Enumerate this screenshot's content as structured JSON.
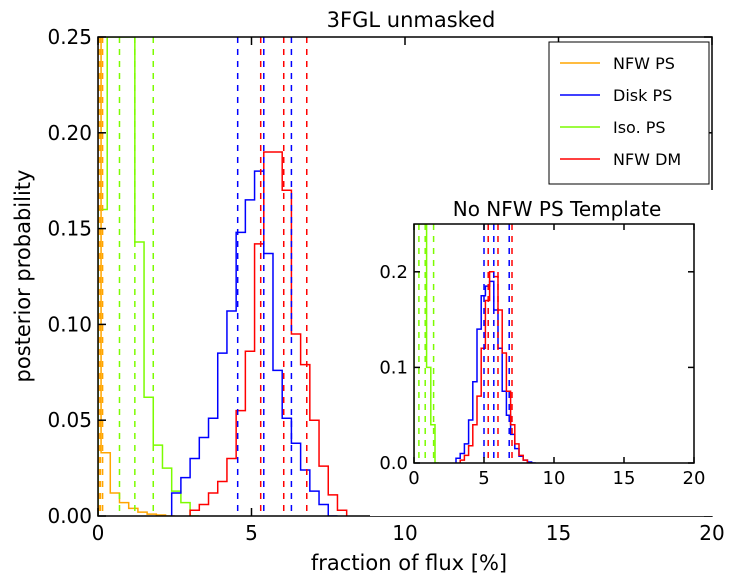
{
  "chart_data": {
    "type": "histogram",
    "title": "3FGL unmasked",
    "xlabel": "fraction of flux [%]",
    "ylabel": "posterior probability",
    "xlim": [
      0,
      20
    ],
    "ylim": [
      0,
      0.25
    ],
    "xticks": [
      "0",
      "5",
      "10",
      "15",
      "20"
    ],
    "yticks": [
      "0.00",
      "0.05",
      "0.10",
      "0.15",
      "0.20",
      "0.25"
    ],
    "legend": {
      "position": "top-right",
      "entries": [
        {
          "label": "NFW PS",
          "color": "#FFA500"
        },
        {
          "label": "Disk PS",
          "color": "#0000FF"
        },
        {
          "label": "Iso. PS",
          "color": "#7CFC00"
        },
        {
          "label": "NFW DM",
          "color": "#FF0000"
        }
      ]
    },
    "series": [
      {
        "name": "NFW PS",
        "color": "#FFA500",
        "edges": [
          0,
          0.1,
          0.4,
          0.7,
          1.0,
          1.3,
          1.6,
          1.9,
          2.2,
          2.5
        ],
        "values": [
          0.25,
          0.033,
          0.012,
          0.007,
          0.004,
          0.002,
          0.001,
          0.0005,
          0.0
        ]
      },
      {
        "name": "Iso. PS",
        "color": "#7CFC00",
        "edges": [
          0,
          0.3,
          0.6,
          0.9,
          1.2,
          1.5,
          1.8,
          2.1,
          2.4,
          2.7,
          3.0,
          3.3
        ],
        "values": [
          0.16,
          0.25,
          0.25,
          0.25,
          0.143,
          0.062,
          0.037,
          0.025,
          0.013,
          0.007,
          0.0
        ]
      },
      {
        "name": "Disk PS",
        "color": "#0000FF",
        "edges": [
          2.4,
          2.7,
          3.0,
          3.3,
          3.6,
          3.9,
          4.2,
          4.5,
          4.8,
          5.1,
          5.4,
          5.7,
          6.0,
          6.3,
          6.6,
          6.9,
          7.2,
          7.5,
          7.8
        ],
        "values": [
          0.012,
          0.02,
          0.03,
          0.041,
          0.051,
          0.085,
          0.107,
          0.148,
          0.165,
          0.18,
          0.137,
          0.076,
          0.051,
          0.038,
          0.024,
          0.013,
          0.006,
          0.0
        ]
      },
      {
        "name": "NFW DM",
        "color": "#FF0000",
        "edges": [
          3.0,
          3.3,
          3.6,
          3.9,
          4.2,
          4.5,
          4.8,
          5.1,
          5.4,
          5.7,
          6.0,
          6.3,
          6.6,
          6.9,
          7.2,
          7.5,
          7.8,
          8.1
        ],
        "values": [
          0.003,
          0.006,
          0.012,
          0.018,
          0.03,
          0.055,
          0.086,
          0.142,
          0.19,
          0.19,
          0.17,
          0.095,
          0.079,
          0.05,
          0.026,
          0.011,
          0.003
        ]
      }
    ],
    "vlines": [
      {
        "series": "NFW PS",
        "x": [
          0.03,
          0.08,
          0.15
        ]
      },
      {
        "series": "Iso. PS",
        "x": [
          0.7,
          1.2,
          1.8
        ]
      },
      {
        "series": "Disk PS",
        "x": [
          4.55,
          5.4,
          6.3
        ]
      },
      {
        "series": "NFW DM",
        "x": [
          5.3,
          6.05,
          6.8
        ]
      }
    ],
    "inset": {
      "title": "No NFW PS Template",
      "xlim": [
        0,
        20
      ],
      "ylim": [
        0,
        0.25
      ],
      "xticks": [
        "0",
        "5",
        "10",
        "15",
        "20"
      ],
      "yticks": [
        "0.0",
        "0.1",
        "0.2"
      ],
      "series": [
        {
          "name": "Iso. PS",
          "color": "#7CFC00",
          "edges": [
            0,
            0.3,
            0.6,
            0.9,
            1.2,
            1.5,
            1.8
          ],
          "values": [
            0.25,
            0.25,
            0.25,
            0.1,
            0.04,
            0.0
          ]
        },
        {
          "name": "Disk PS",
          "color": "#0000FF",
          "edges": [
            3.0,
            3.3,
            3.6,
            3.9,
            4.2,
            4.5,
            4.8,
            5.1,
            5.4,
            5.7,
            6.0,
            6.3,
            6.6,
            6.9,
            7.2,
            7.5,
            7.8,
            8.1,
            8.4,
            8.7
          ],
          "values": [
            0.005,
            0.01,
            0.02,
            0.045,
            0.085,
            0.14,
            0.175,
            0.185,
            0.19,
            0.16,
            0.12,
            0.075,
            0.05,
            0.03,
            0.015,
            0.007,
            0.003,
            0.001,
            0.0
          ]
        },
        {
          "name": "NFW DM",
          "color": "#FF0000",
          "edges": [
            3.3,
            3.6,
            3.9,
            4.2,
            4.5,
            4.8,
            5.1,
            5.4,
            5.7,
            6.0,
            6.3,
            6.6,
            6.9,
            7.2,
            7.5,
            7.8,
            8.1,
            8.4
          ],
          "values": [
            0.003,
            0.008,
            0.018,
            0.04,
            0.07,
            0.12,
            0.17,
            0.2,
            0.195,
            0.16,
            0.115,
            0.075,
            0.04,
            0.02,
            0.008,
            0.003,
            0.0
          ]
        }
      ],
      "vlines": [
        {
          "series": "Iso. PS",
          "x": [
            0.35,
            0.8,
            1.4
          ]
        },
        {
          "series": "Disk PS",
          "x": [
            5.0,
            5.7,
            6.8
          ]
        },
        {
          "series": "NFW DM",
          "x": [
            5.3,
            6.0,
            7.0
          ]
        }
      ]
    }
  }
}
